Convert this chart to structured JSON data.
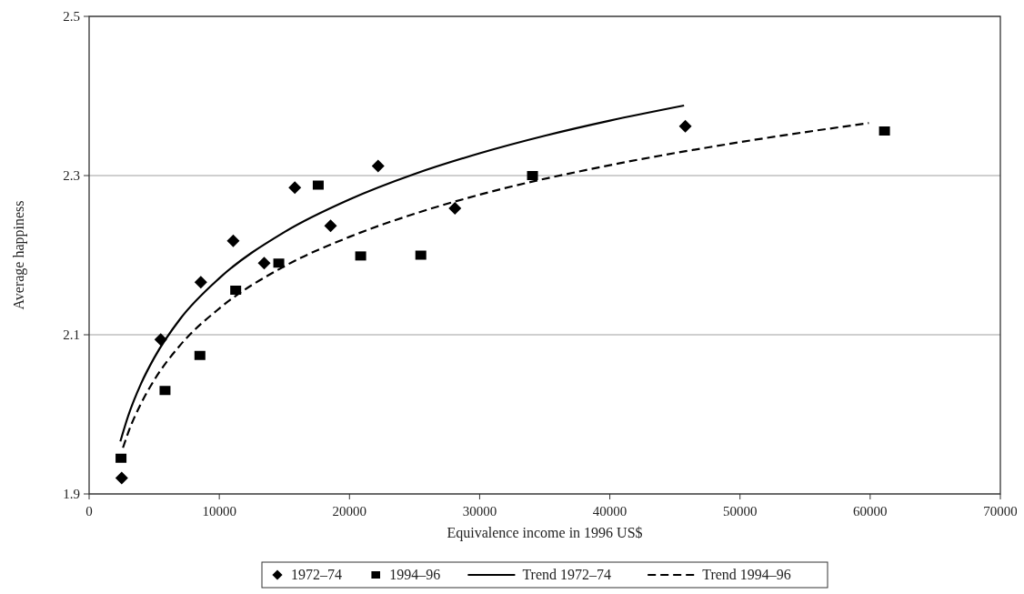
{
  "chart_data": {
    "type": "scatter",
    "xlabel": "Equivalence income in 1996 US$",
    "ylabel": "Average happiness",
    "xlim": [
      0,
      70000
    ],
    "xticks": [
      0,
      10000,
      20000,
      30000,
      40000,
      50000,
      60000,
      70000
    ],
    "ylim": [
      1.9,
      2.5
    ],
    "yticks": [
      1.9,
      2.1,
      2.3,
      2.5
    ],
    "grid": "y",
    "legend": "bottom",
    "series": [
      {
        "name": "1972–74",
        "marker": "diamond",
        "color": "#000000",
        "x": [
          2500,
          5500,
          8580,
          11070,
          13450,
          15800,
          18550,
          22200,
          28100,
          45800
        ],
        "values": [
          1.92,
          2.094,
          2.166,
          2.218,
          2.19,
          2.285,
          2.237,
          2.312,
          2.259,
          2.362
        ]
      },
      {
        "name": "1994–96",
        "marker": "square",
        "color": "#000000",
        "x": [
          2450,
          5830,
          8510,
          11260,
          14570,
          17600,
          20860,
          25480,
          34060,
          61100
        ],
        "values": [
          1.945,
          2.03,
          2.074,
          2.156,
          2.19,
          2.288,
          2.199,
          2.2,
          2.3,
          2.356
        ]
      },
      {
        "name": "Trend 1972–74",
        "type": "line",
        "line_style": "solid",
        "color": "#000000",
        "x": [
          2400,
          3000,
          4000,
          5000,
          7000,
          10000,
          15000,
          20000,
          25000,
          30000,
          35000,
          40000,
          45700
        ],
        "values": [
          1.966,
          1.998,
          2.039,
          2.071,
          2.12,
          2.171,
          2.229,
          2.27,
          2.302,
          2.328,
          2.35,
          2.369,
          2.388
        ]
      },
      {
        "name": "Trend 1994–96",
        "type": "line",
        "line_style": "dashed",
        "color": "#000000",
        "x": [
          2600,
          3000,
          4000,
          5000,
          7000,
          10000,
          15000,
          20000,
          25000,
          30000,
          40000,
          50000,
          59900
        ],
        "values": [
          1.958,
          1.977,
          2.014,
          2.043,
          2.087,
          2.133,
          2.186,
          2.223,
          2.252,
          2.276,
          2.313,
          2.342,
          2.366
        ]
      }
    ]
  }
}
